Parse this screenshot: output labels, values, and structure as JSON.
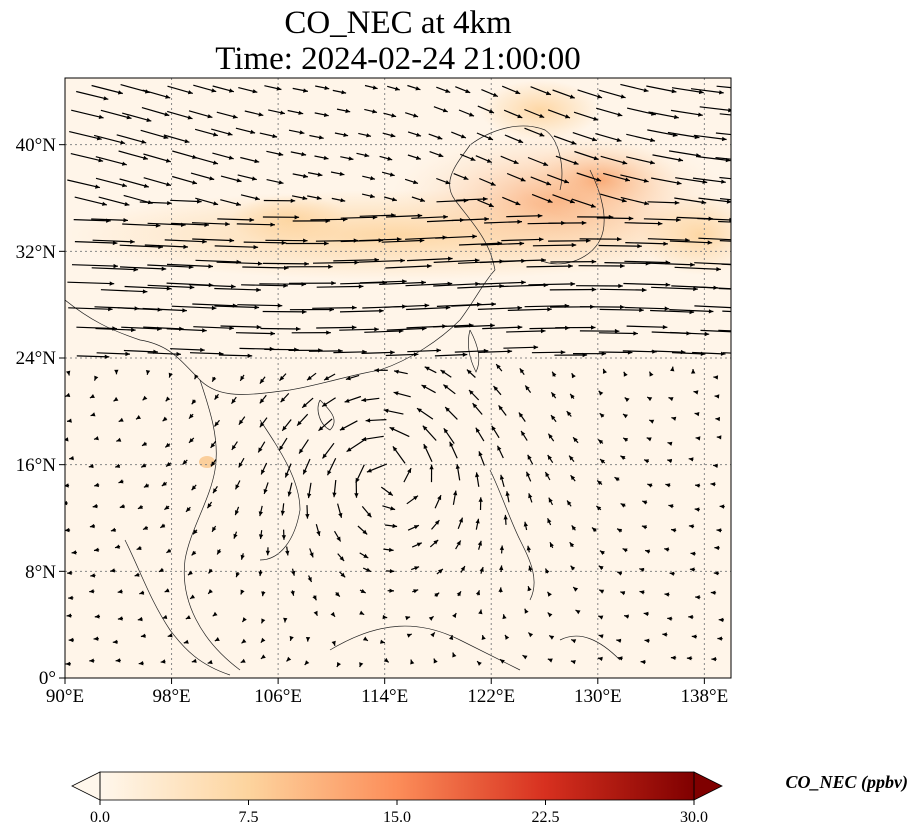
{
  "title": {
    "line1": "CO_NEC at 4km",
    "line2": "Time: 2024-02-24 21:00:00"
  },
  "map": {
    "x_ticks": [
      "90°E",
      "98°E",
      "106°E",
      "114°E",
      "122°E",
      "130°E",
      "138°E"
    ],
    "y_ticks": [
      "40°N",
      "32°N",
      "24°N",
      "16°N",
      "8°N",
      "0°"
    ],
    "lon_range": [
      90,
      140
    ],
    "lat_range": [
      0,
      45
    ],
    "gridlines": true,
    "field_colormap": "OrRd-like (white to dark red)",
    "vectors": "wind arrows"
  },
  "colorbar": {
    "label": "CO_NEC (ppbv)",
    "ticks": [
      "0.0",
      "7.5",
      "15.0",
      "22.5",
      "30.0"
    ],
    "range": [
      0,
      30
    ],
    "colors": [
      "#fff7ec",
      "#fdd49e",
      "#fc8d59",
      "#d7301f",
      "#7f0000"
    ]
  }
}
